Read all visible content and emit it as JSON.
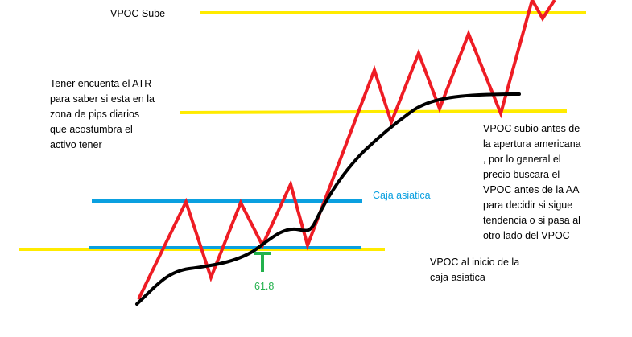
{
  "colors": {
    "background": "#ffffff",
    "vpoc_line": "#ffeb00",
    "asian_box_line": "#0aa0e0",
    "price_zigzag": "#ee1c24",
    "trend_curve": "#000000",
    "fib_marker": "#22b14c",
    "text": "#000000"
  },
  "labels": {
    "vpoc_sube": "VPOC Sube",
    "atr_note": [
      "Tener encuenta el ATR",
      "para saber si esta en la",
      "zona de pips diarios",
      "que acostumbra el",
      "activo tener"
    ],
    "caja_asiatica": "Caja asiatica",
    "vpoc_subio_note": [
      "VPOC subio antes de",
      "la apertura americana",
      ", por lo general el",
      "precio buscara el",
      "VPOC antes de la AA",
      "para decidir si sigue",
      "tendencia o si pasa al",
      "otro lado del VPOC"
    ],
    "vpoc_inicio_note": [
      "VPOC al inicio de la",
      "caja asiatica"
    ],
    "fib_level": "61.8"
  }
}
